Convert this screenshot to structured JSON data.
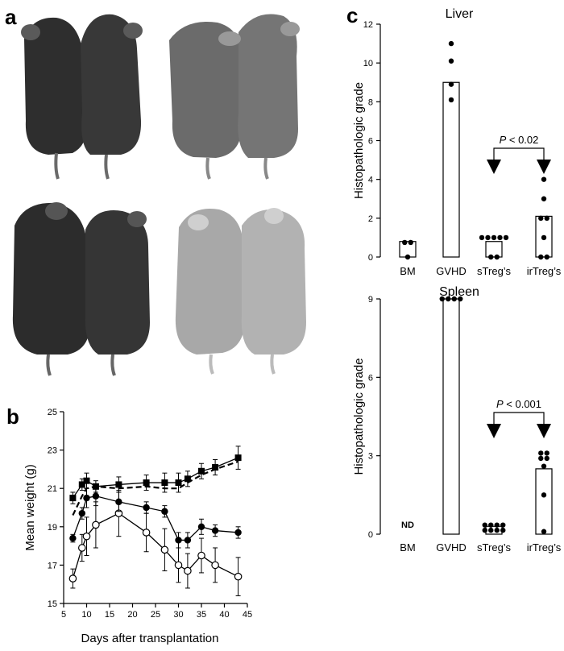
{
  "panels": {
    "a": "a",
    "b": "b",
    "c": "c"
  },
  "chart_data": [
    {
      "panel": "b",
      "type": "line",
      "xlabel": "Days after transplantation",
      "ylabel": "Mean weight (g)",
      "xlim": [
        5,
        45
      ],
      "ylim": [
        15,
        25
      ],
      "xticks": [
        5,
        10,
        15,
        20,
        25,
        30,
        35,
        40,
        45
      ],
      "yticks": [
        15,
        17,
        19,
        21,
        23,
        25
      ],
      "series": [
        {
          "marker": "filled-square",
          "line": "solid",
          "x": [
            7,
            9,
            10,
            12,
            17,
            23,
            27,
            30,
            32,
            35,
            38,
            43
          ],
          "y": [
            20.5,
            21.2,
            21.4,
            21.1,
            21.2,
            21.3,
            21.3,
            21.3,
            21.5,
            21.9,
            22.1,
            22.6
          ],
          "err": [
            0.3,
            0.3,
            0.4,
            0.3,
            0.4,
            0.4,
            0.5,
            0.5,
            0.4,
            0.4,
            0.4,
            0.6
          ]
        },
        {
          "marker": "none",
          "line": "dashed",
          "x": [
            7,
            9,
            10,
            12,
            17,
            23,
            27,
            30,
            32,
            35,
            38,
            43
          ],
          "y": [
            19.6,
            20.6,
            21.0,
            21.1,
            21.0,
            21.1,
            21.0,
            21.0,
            21.3,
            21.7,
            22.0,
            22.4
          ]
        },
        {
          "marker": "filled-circle",
          "line": "solid",
          "x": [
            7,
            9,
            10,
            12,
            17,
            23,
            27,
            30,
            32,
            35,
            38,
            43
          ],
          "y": [
            18.4,
            19.7,
            20.5,
            20.6,
            20.3,
            20.0,
            19.8,
            18.3,
            18.3,
            19.0,
            18.8,
            18.7
          ],
          "err": [
            0.2,
            0.3,
            0.5,
            0.5,
            0.5,
            0.3,
            0.3,
            0.4,
            0.4,
            0.4,
            0.3,
            0.3
          ]
        },
        {
          "marker": "open-circle",
          "line": "solid",
          "x": [
            7,
            9,
            10,
            12,
            17,
            23,
            27,
            30,
            32,
            35,
            38,
            43
          ],
          "y": [
            16.3,
            17.9,
            18.5,
            19.1,
            19.7,
            18.7,
            17.8,
            17.0,
            16.7,
            17.5,
            17.0,
            16.4
          ],
          "err": [
            0.5,
            0.7,
            1.0,
            1.2,
            1.2,
            1.0,
            1.1,
            0.9,
            0.9,
            0.9,
            0.9,
            1.0
          ]
        }
      ]
    },
    {
      "panel": "c",
      "type": "bar",
      "title": "Liver",
      "ylabel": "Histopathologic grade",
      "categories": [
        "BM",
        "GVHD",
        "sTreg’s",
        "irTreg’s"
      ],
      "values": [
        0.8,
        9.0,
        0.8,
        2.1
      ],
      "points": [
        [
          0.75,
          0,
          0.75
        ],
        [
          11,
          10.1,
          8.9,
          8.1
        ],
        [
          1,
          1,
          1,
          1,
          1,
          0,
          0
        ],
        [
          4,
          3,
          2,
          2,
          1,
          0,
          0
        ]
      ],
      "ylim": [
        0,
        12
      ],
      "yticks": [
        0,
        2,
        4,
        6,
        8,
        10,
        12
      ],
      "annotation": {
        "from": "sTreg’s",
        "to": "irTreg’s",
        "p_prefix": "P",
        "p_suffix": " < 0.02"
      }
    },
    {
      "panel": "c",
      "type": "bar",
      "title": "Spleen",
      "ylabel": "Histopathologic grade",
      "categories": [
        "BM",
        "GVHD",
        "sTreg’s",
        "irTreg’s"
      ],
      "values": [
        null,
        9.0,
        0.3,
        2.5
      ],
      "points": [
        [],
        [
          9,
          9,
          9,
          9
        ],
        [
          0.35,
          0.35,
          0.35,
          0.35,
          0.15,
          0.15,
          0.15,
          0.15
        ],
        [
          3.1,
          3.1,
          2.9,
          2.9,
          2.6,
          1.5,
          0.1
        ]
      ],
      "value_labels": {
        "BM": "ND"
      },
      "ylim": [
        0,
        9
      ],
      "yticks": [
        0,
        3,
        6,
        9
      ],
      "annotation": {
        "from": "sTreg’s",
        "to": "irTreg’s",
        "p_prefix": "P",
        "p_suffix": " < 0.001"
      }
    }
  ]
}
